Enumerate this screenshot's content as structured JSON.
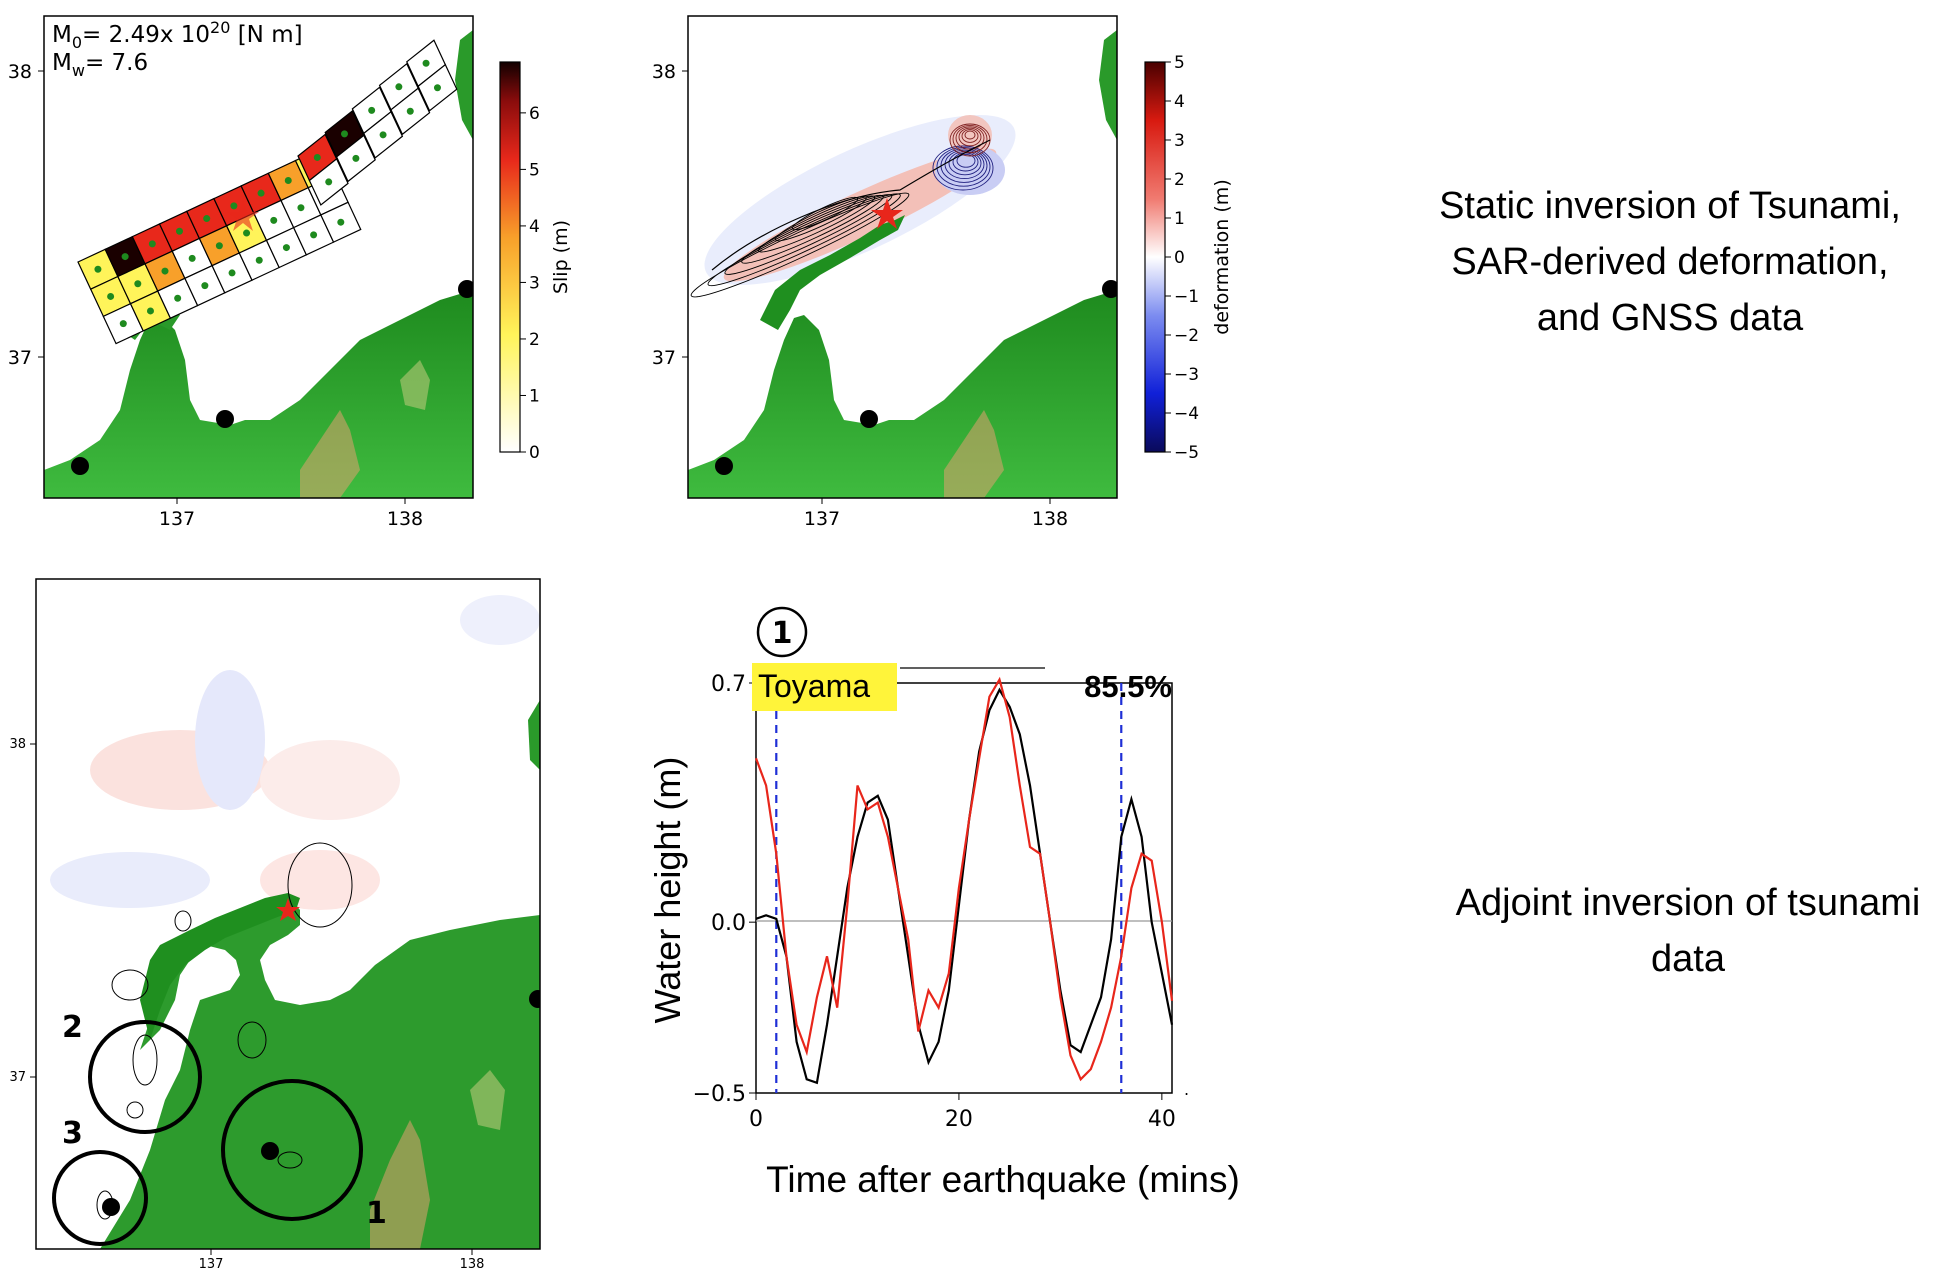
{
  "panels": {
    "slip": {
      "m0_prefix": "M",
      "m0_sub": "0",
      "m0_value": "= 2.49x 10",
      "m0_exp": "20",
      "m0_units": " [N m]",
      "mw_prefix": "M",
      "mw_sub": "w",
      "mw_value": "=  7.6",
      "y_ticks": [
        "38",
        "37"
      ],
      "x_ticks": [
        "137",
        "138"
      ],
      "colorbar_label": "Slip (m)",
      "colorbar_ticks": [
        "0",
        "1",
        "2",
        "3",
        "4",
        "5",
        "6"
      ]
    },
    "deformation": {
      "y_ticks": [
        "38",
        "37"
      ],
      "x_ticks": [
        "137",
        "138"
      ],
      "colorbar_label": "deformation (m)",
      "colorbar_ticks": [
        "5",
        "4",
        "3",
        "2",
        "1",
        "0",
        "−1",
        "−2",
        "−3",
        "−4",
        "−5"
      ]
    },
    "adjoint_map": {
      "y_ticks": [
        "38",
        "37"
      ],
      "x_ticks": [
        "137",
        "138"
      ],
      "circle_labels": [
        "2",
        "3",
        "1"
      ]
    }
  },
  "captions": {
    "static": [
      "Static inversion of Tsunami,",
      "SAR-derived deformation,",
      "and GNSS data"
    ],
    "adjoint": [
      "Adjoint inversion of tsunami",
      "data"
    ]
  },
  "chart_data": {
    "type": "line",
    "title": "Toyama",
    "station_number": "1",
    "fit_percent": "85.5%",
    "xlabel": "Time after earthquake (mins)",
    "ylabel": "Water height (m)",
    "xlim": [
      0,
      41
    ],
    "ylim": [
      -0.5,
      0.7
    ],
    "x_ticks": [
      "0",
      "20",
      "40"
    ],
    "y_ticks": [
      "0.7",
      "0.0",
      "−0.5"
    ],
    "window_lines_x": [
      2,
      36
    ],
    "colors": {
      "observed": "#000000",
      "synthetic": "#e8261b",
      "window": "#1f2fd6",
      "highlight": "#fff43a"
    },
    "series": [
      {
        "color": "black",
        "x": [
          0,
          1,
          2,
          3,
          4,
          5,
          6,
          7,
          8,
          9,
          10,
          11,
          12,
          13,
          14,
          15,
          16,
          17,
          18,
          19,
          20,
          21,
          22,
          23,
          24,
          25,
          26,
          27,
          28,
          29,
          30,
          31,
          32,
          33,
          34,
          35,
          36,
          37,
          38,
          39,
          40,
          41
        ],
        "values": [
          0.01,
          0.02,
          0.01,
          -0.1,
          -0.35,
          -0.46,
          -0.47,
          -0.3,
          -0.1,
          0.1,
          0.25,
          0.35,
          0.37,
          0.3,
          0.1,
          -0.1,
          -0.3,
          -0.41,
          -0.35,
          -0.2,
          0.05,
          0.3,
          0.5,
          0.62,
          0.68,
          0.63,
          0.55,
          0.4,
          0.2,
          0.0,
          -0.2,
          -0.36,
          -0.38,
          -0.3,
          -0.22,
          -0.05,
          0.25,
          0.36,
          0.25,
          0.0,
          -0.15,
          -0.3
        ]
      },
      {
        "color": "red",
        "x": [
          0,
          1,
          2,
          3,
          4,
          5,
          6,
          7,
          8,
          9,
          10,
          11,
          12,
          13,
          14,
          15,
          16,
          17,
          18,
          19,
          20,
          21,
          22,
          23,
          24,
          25,
          26,
          27,
          28,
          29,
          30,
          31,
          32,
          33,
          34,
          35,
          36,
          37,
          38,
          39,
          40,
          41
        ],
        "values": [
          0.48,
          0.4,
          0.2,
          -0.1,
          -0.3,
          -0.38,
          -0.22,
          -0.1,
          -0.25,
          0.05,
          0.4,
          0.33,
          0.35,
          0.25,
          0.1,
          -0.05,
          -0.32,
          -0.2,
          -0.25,
          -0.15,
          0.1,
          0.3,
          0.48,
          0.66,
          0.71,
          0.6,
          0.4,
          0.22,
          0.2,
          0.0,
          -0.22,
          -0.39,
          -0.46,
          -0.43,
          -0.35,
          -0.25,
          -0.1,
          0.1,
          0.2,
          0.18,
          0.0,
          -0.23
        ]
      }
    ]
  }
}
